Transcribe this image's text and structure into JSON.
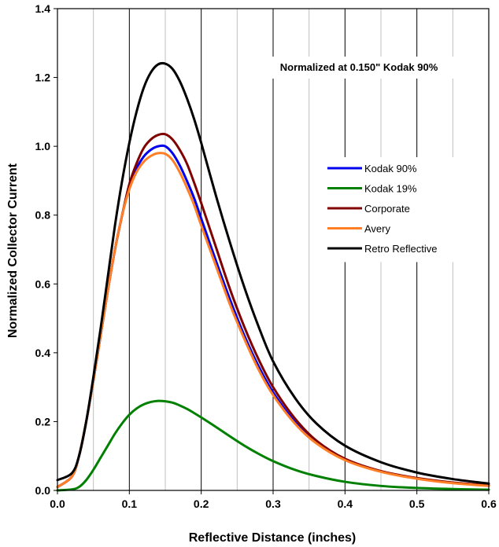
{
  "chart_data": {
    "type": "line",
    "xlabel": "Reflective Distance (inches)",
    "ylabel": "Normalized Collector Current",
    "annotation": "Normalized at 0.150\" Kodak 90%",
    "xlim": [
      0.0,
      0.6
    ],
    "ylim": [
      0.0,
      1.4
    ],
    "x_ticks": [
      "0.0",
      "0.1",
      "0.2",
      "0.3",
      "0.4",
      "0.5",
      "0.6"
    ],
    "y_ticks": [
      "0.0",
      "0.2",
      "0.4",
      "0.6",
      "0.8",
      "1.0",
      "1.2",
      "1.4"
    ],
    "x_tick_values": [
      0.0,
      0.1,
      0.2,
      0.3,
      0.4,
      0.5,
      0.6
    ],
    "y_tick_values": [
      0.0,
      0.2,
      0.4,
      0.6,
      0.8,
      1.0,
      1.2,
      1.4
    ],
    "grid": {
      "x_major": true,
      "x_minor": true,
      "y_major": false
    },
    "legend_position": "right",
    "x": [
      0.0,
      0.02,
      0.03,
      0.04,
      0.05,
      0.06,
      0.07,
      0.08,
      0.09,
      0.1,
      0.11,
      0.12,
      0.13,
      0.14,
      0.15,
      0.16,
      0.17,
      0.18,
      0.19,
      0.2,
      0.22,
      0.24,
      0.26,
      0.28,
      0.3,
      0.33,
      0.36,
      0.4,
      0.45,
      0.5,
      0.55,
      0.6
    ],
    "series": [
      {
        "name": "Kodak 90%",
        "color": "#0000ee",
        "values": [
          0.01,
          0.04,
          0.1,
          0.2,
          0.32,
          0.45,
          0.58,
          0.7,
          0.8,
          0.88,
          0.935,
          0.97,
          0.99,
          1.0,
          1.0,
          0.98,
          0.945,
          0.9,
          0.85,
          0.79,
          0.67,
          0.555,
          0.45,
          0.36,
          0.285,
          0.2,
          0.14,
          0.09,
          0.055,
          0.035,
          0.022,
          0.014
        ]
      },
      {
        "name": "Kodak 19%",
        "color": "#008000",
        "values": [
          0.0,
          0.003,
          0.01,
          0.03,
          0.06,
          0.095,
          0.13,
          0.165,
          0.195,
          0.22,
          0.238,
          0.25,
          0.257,
          0.26,
          0.259,
          0.255,
          0.247,
          0.237,
          0.225,
          0.212,
          0.185,
          0.157,
          0.13,
          0.106,
          0.085,
          0.06,
          0.042,
          0.025,
          0.013,
          0.007,
          0.004,
          0.002
        ]
      },
      {
        "name": "Corporate",
        "color": "#800000",
        "values": [
          0.01,
          0.04,
          0.1,
          0.2,
          0.32,
          0.45,
          0.58,
          0.7,
          0.8,
          0.89,
          0.95,
          0.995,
          1.02,
          1.033,
          1.035,
          1.02,
          0.99,
          0.95,
          0.895,
          0.835,
          0.71,
          0.585,
          0.475,
          0.38,
          0.3,
          0.21,
          0.145,
          0.092,
          0.056,
          0.036,
          0.023,
          0.015
        ]
      },
      {
        "name": "Avery",
        "color": "#ff7f27",
        "values": [
          0.01,
          0.04,
          0.1,
          0.2,
          0.32,
          0.45,
          0.58,
          0.7,
          0.8,
          0.875,
          0.925,
          0.955,
          0.972,
          0.98,
          0.978,
          0.96,
          0.925,
          0.88,
          0.83,
          0.77,
          0.655,
          0.54,
          0.44,
          0.35,
          0.277,
          0.195,
          0.137,
          0.088,
          0.054,
          0.034,
          0.021,
          0.013
        ]
      },
      {
        "name": "Retro Reflective",
        "color": "#000000",
        "values": [
          0.03,
          0.05,
          0.1,
          0.2,
          0.33,
          0.47,
          0.62,
          0.77,
          0.9,
          1.01,
          1.1,
          1.17,
          1.215,
          1.238,
          1.24,
          1.225,
          1.19,
          1.14,
          1.08,
          1.01,
          0.86,
          0.72,
          0.59,
          0.475,
          0.375,
          0.27,
          0.195,
          0.13,
          0.082,
          0.052,
          0.033,
          0.02
        ]
      }
    ]
  }
}
